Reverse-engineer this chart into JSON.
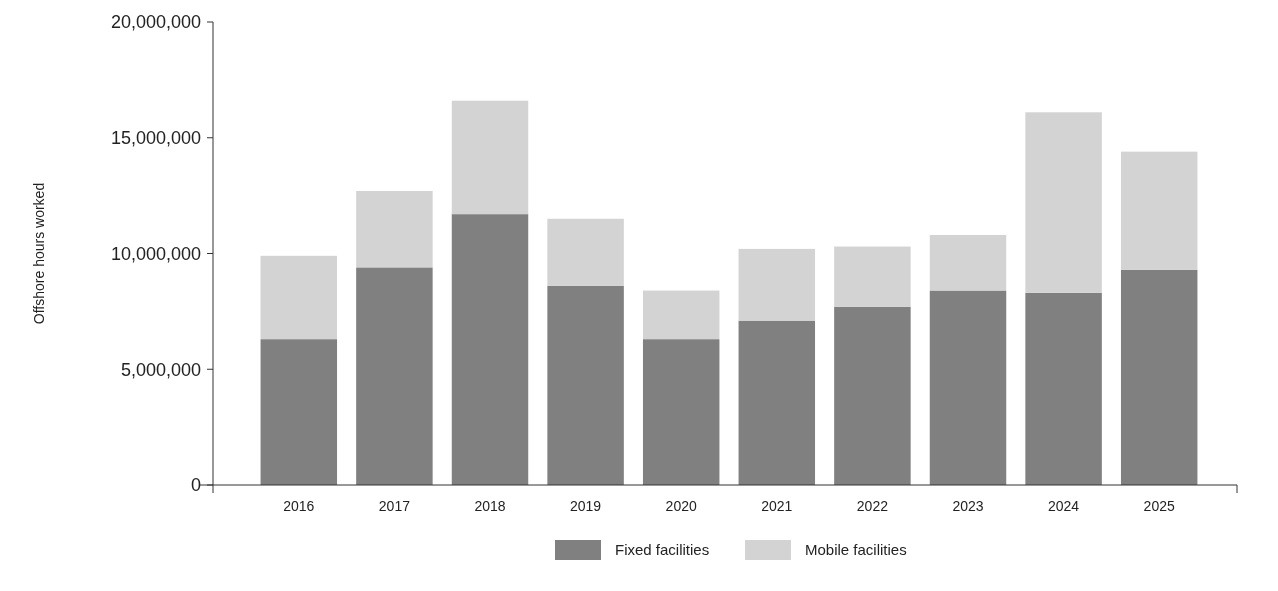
{
  "chart_data": {
    "type": "bar",
    "stacked": true,
    "ylabel": "Offshore hours worked",
    "categories": [
      "2016",
      "2017",
      "2018",
      "2019",
      "2020",
      "2021",
      "2022",
      "2023",
      "2024",
      "2025"
    ],
    "series": [
      {
        "name": "Fixed facilities",
        "color": "#808080",
        "values": [
          6300000,
          9400000,
          11700000,
          8600000,
          6300000,
          7100000,
          7700000,
          8400000,
          8300000,
          9300000
        ]
      },
      {
        "name": "Mobile facilities",
        "color": "#d3d3d3",
        "values": [
          3600000,
          3300000,
          4900000,
          2900000,
          2100000,
          3100000,
          2600000,
          2400000,
          7800000,
          5100000
        ]
      }
    ],
    "ylim": [
      0,
      20000000
    ],
    "yticks": [
      {
        "value": 0,
        "label": "0"
      },
      {
        "value": 5000000,
        "label": "5,000,000"
      },
      {
        "value": 10000000,
        "label": "10,000,000"
      },
      {
        "value": 15000000,
        "label": "15,000,000"
      },
      {
        "value": 20000000,
        "label": "20,000,000"
      }
    ],
    "legend": "bottom",
    "grid": false
  }
}
